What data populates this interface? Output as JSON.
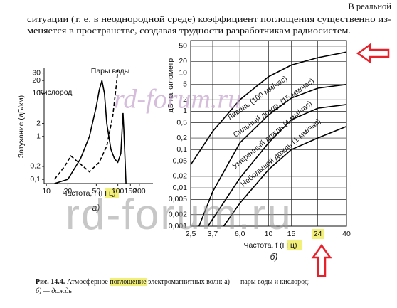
{
  "text": {
    "line1": "В реальной",
    "line2": "ситуации (т. е. в неоднородной среде) коэффициент поглощения существенно из-",
    "line3": "меняется в пространстве, создавая трудности разработчикам радиосистем."
  },
  "chart_data": [
    {
      "type": "line",
      "panel_label": "а)",
      "x_label": "Частота, f (ГГц)",
      "y_label": "Затухание (дБ/км)",
      "x_log": true,
      "y_log": true,
      "xlim": [
        9.3,
        310
      ],
      "ylim": [
        0.08,
        40
      ],
      "xticks": [
        10,
        20,
        50,
        100,
        150,
        200
      ],
      "yticks": [
        {
          "value": 0.1,
          "label": "0,1"
        },
        {
          "value": 0.2,
          "label": "0,2"
        },
        1,
        2,
        10,
        20,
        30
      ],
      "grid": false,
      "series": [
        {
          "name": "Кислород",
          "color": "#000000",
          "dash": false,
          "x": [
            13,
            20,
            30,
            40,
            50,
            55,
            60,
            65,
            70,
            80,
            90,
            100,
            110,
            115,
            118,
            121,
            125,
            130
          ],
          "values": [
            0.08,
            0.1,
            0.3,
            1,
            5,
            12,
            20,
            10,
            2,
            0.5,
            0.3,
            0.25,
            0.4,
            1.5,
            3.5,
            1.5,
            0.4,
            0.08
          ]
        },
        {
          "name": "Пары воды",
          "color": "#000000",
          "dash": true,
          "x": [
            13,
            18,
            22,
            28,
            40,
            55,
            70,
            85,
            95,
            100
          ],
          "values": [
            0.1,
            0.2,
            0.35,
            0.25,
            0.15,
            0.25,
            0.6,
            3,
            15,
            35
          ]
        }
      ]
    },
    {
      "type": "line",
      "panel_label": "б)",
      "x_label": "Частота, f (ГГц)",
      "y_label": "дБ на километр",
      "x_log": true,
      "y_log": true,
      "xlim": [
        2.5,
        40
      ],
      "ylim": [
        0.001,
        70
      ],
      "xticks": [
        {
          "value": 2.5,
          "label": "2,5"
        },
        {
          "value": 3.7,
          "label": "3,7"
        },
        {
          "value": 6,
          "label": "6,0"
        },
        10,
        15,
        24,
        40
      ],
      "yticks": [
        50,
        20,
        10,
        5,
        2,
        1,
        {
          "value": 0.5,
          "label": "0,5"
        },
        {
          "value": 0.2,
          "label": "0,2"
        },
        {
          "value": 0.1,
          "label": "0,1"
        },
        {
          "value": 0.05,
          "label": "0,05"
        },
        {
          "value": 0.02,
          "label": "0,02"
        },
        {
          "value": 0.01,
          "label": "0,01"
        },
        {
          "value": 0.005,
          "label": "0,005"
        },
        {
          "value": 0.002,
          "label": "0,002"
        },
        {
          "value": 0.001,
          "label": "0,001"
        }
      ],
      "grid": true,
      "series": [
        {
          "name": "Ливень (100 мм/час)",
          "color": "#000000",
          "x": [
            2.5,
            3.7,
            6,
            10,
            15,
            24,
            40
          ],
          "values": [
            0.04,
            0.3,
            2,
            8,
            16,
            25,
            35
          ]
        },
        {
          "name": "Сильный дождь (15 мм/час)",
          "color": "#000000",
          "x": [
            2.9,
            3.7,
            6,
            10,
            15,
            24,
            40
          ],
          "values": [
            0.001,
            0.008,
            0.15,
            0.8,
            2.2,
            4,
            5
          ]
        },
        {
          "name": "Умеренный дождь (4 мм/час)",
          "color": "#000000",
          "x": [
            3.4,
            6,
            10,
            15,
            24,
            40
          ],
          "values": [
            0.001,
            0.018,
            0.15,
            0.6,
            1.2,
            1.5
          ]
        },
        {
          "name": "Небольшой дождь (1 мм/час)",
          "color": "#000000",
          "x": [
            4.5,
            6,
            10,
            15,
            24,
            40
          ],
          "values": [
            0.001,
            0.004,
            0.03,
            0.1,
            0.2,
            0.4
          ]
        }
      ]
    }
  ],
  "watermarks": [
    "rd-forum.ru",
    "rd-forum.ru"
  ],
  "caption": {
    "label": "Рис. 14.4.",
    "text_before": "Атмосферное",
    "highlight": "поглощение",
    "text_after": "электромагнитных волн: а) — пары воды и кислород;",
    "line2": "б) — дождь"
  }
}
